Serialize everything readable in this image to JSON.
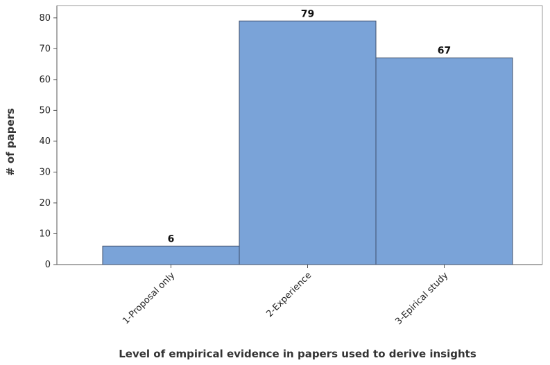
{
  "chart_data": {
    "type": "bar",
    "categories": [
      "1-Proposal only",
      "2-Experience",
      "3-Epirical study"
    ],
    "values": [
      6,
      79,
      67
    ],
    "title": "",
    "xlabel": "Level of empirical evidence in papers used to derive insights",
    "ylabel": "# of papers",
    "ylim": [
      0,
      84
    ],
    "yticks": [
      0,
      10,
      20,
      30,
      40,
      50,
      60,
      70,
      80
    ],
    "bar_color": "#7aa3d8",
    "grid": false,
    "legend": "none"
  }
}
